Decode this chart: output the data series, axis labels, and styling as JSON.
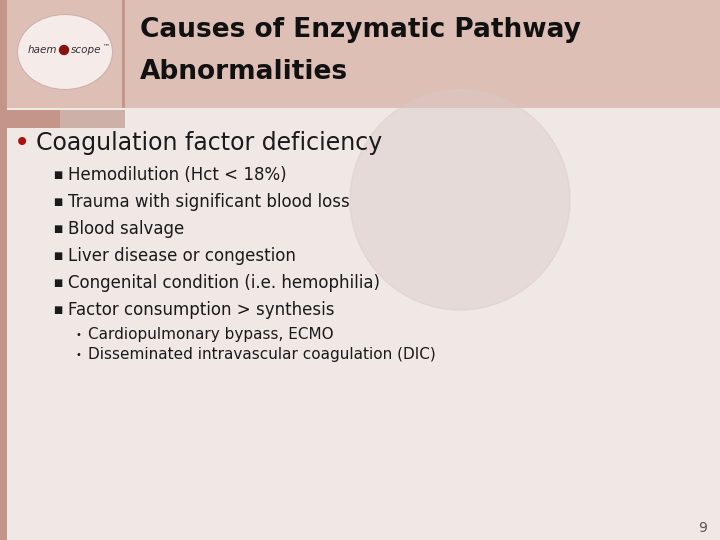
{
  "title_line1": "Causes of Enzymatic Pathway",
  "title_line2": "Abnormalities",
  "title_fontsize": 19,
  "header_bg_color": "#ddbfb5",
  "slide_bg_color": "#f0e8e4",
  "content_bg_color": "#ede4e0",
  "main_bullet": "Coagulation factor deficiency",
  "main_bullet_color": "#aa1111",
  "main_bullet_fontsize": 17,
  "sub_bullets": [
    "Hemodilution (Hct < 18%)",
    "Trauma with significant blood loss",
    "Blood salvage",
    "Liver disease or congestion",
    "Congenital condition (i.e. hemophilia)",
    "Factor consumption > synthesis"
  ],
  "sub_bullet_fontsize": 12,
  "sub_bullet_color": "#1a1a1a",
  "sub_bullet_marker": "■",
  "sub_sub_bullets": [
    "Cardiopulmonary bypass, ECMO",
    "Disseminated intravascular coagulation (DIC)"
  ],
  "sub_sub_fontsize": 11,
  "sub_sub_color": "#1a1a1a",
  "page_number": "9",
  "left_bar_color": "#c4968a",
  "divider_color": "#c4968a",
  "title_text_color": "#111111",
  "logo_text_color": "#333333",
  "watermark_color": "#d8cbc8"
}
